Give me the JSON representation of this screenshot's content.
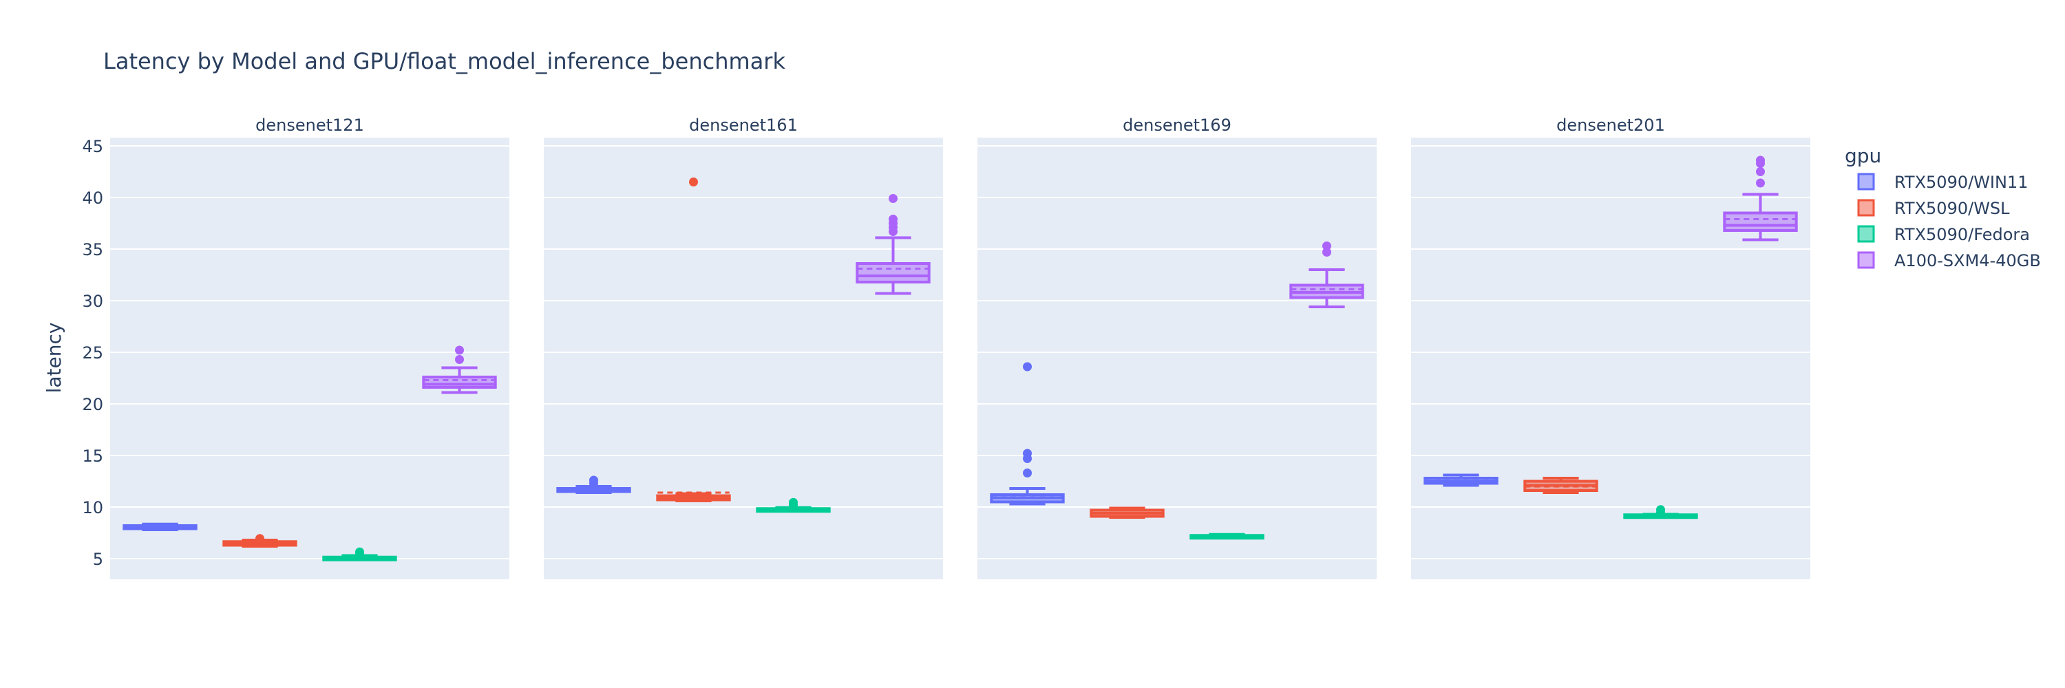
{
  "chart_data": {
    "type": "box",
    "title": "Latency by Model and GPU/float_model_inference_benchmark",
    "ylabel": "latency",
    "ylim": [
      3,
      45.8
    ],
    "yticks": [
      5,
      10,
      15,
      20,
      25,
      30,
      35,
      40,
      45
    ],
    "grid": true,
    "legend_title": "gpu",
    "legend_position": "right",
    "series": [
      {
        "name": "RTX5090/WIN11",
        "color": "#636efa"
      },
      {
        "name": "RTX5090/WSL",
        "color": "#ef553b"
      },
      {
        "name": "RTX5090/Fedora",
        "color": "#00cc96"
      },
      {
        "name": "A100-SXM4-40GB",
        "color": "#ab63fa"
      }
    ],
    "panels": [
      {
        "title": "densenet121",
        "boxes": [
          {
            "series": "RTX5090/WIN11",
            "min": 7.8,
            "q1": 7.9,
            "median": 8.05,
            "mean": 8.05,
            "q3": 8.2,
            "max": 8.35,
            "outliers": []
          },
          {
            "series": "RTX5090/WSL",
            "min": 6.2,
            "q1": 6.3,
            "median": 6.45,
            "mean": 6.45,
            "q3": 6.65,
            "max": 6.8,
            "outliers": [
              6.95
            ]
          },
          {
            "series": "RTX5090/Fedora",
            "min": 4.95,
            "q1": 5.0,
            "median": 5.05,
            "mean": 5.05,
            "q3": 5.15,
            "max": 5.3,
            "outliers": [
              5.5,
              5.65
            ]
          },
          {
            "series": "A100-SXM4-40GB",
            "min": 21.1,
            "q1": 21.6,
            "median": 21.9,
            "mean": 22.3,
            "q3": 22.6,
            "max": 23.5,
            "outliers": [
              24.3,
              25.2
            ]
          }
        ]
      },
      {
        "title": "densenet161",
        "boxes": [
          {
            "series": "RTX5090/WIN11",
            "min": 11.4,
            "q1": 11.5,
            "median": 11.6,
            "mean": 11.65,
            "q3": 11.8,
            "max": 12.0,
            "outliers": [
              12.3,
              12.6
            ]
          },
          {
            "series": "RTX5090/WSL",
            "min": 10.6,
            "q1": 10.7,
            "median": 10.9,
            "mean": 11.4,
            "q3": 11.1,
            "max": 11.3,
            "outliers": [
              41.5
            ]
          },
          {
            "series": "RTX5090/Fedora",
            "min": 9.6,
            "q1": 9.65,
            "median": 9.75,
            "mean": 9.8,
            "q3": 9.85,
            "max": 9.95,
            "outliers": [
              10.2,
              10.45
            ]
          },
          {
            "series": "A100-SXM4-40GB",
            "min": 30.7,
            "q1": 31.8,
            "median": 32.4,
            "mean": 33.1,
            "q3": 33.6,
            "max": 36.1,
            "outliers": [
              36.7,
              37.1,
              37.5,
              37.9,
              39.9
            ]
          }
        ]
      },
      {
        "title": "densenet169",
        "boxes": [
          {
            "series": "RTX5090/WIN11",
            "min": 10.3,
            "q1": 10.5,
            "median": 10.9,
            "mean": 11.15,
            "q3": 11.2,
            "max": 11.8,
            "outliers": [
              13.3,
              14.7,
              15.2,
              23.6
            ]
          },
          {
            "series": "RTX5090/WSL",
            "min": 9.0,
            "q1": 9.1,
            "median": 9.4,
            "mean": 9.4,
            "q3": 9.7,
            "max": 9.9,
            "outliers": []
          },
          {
            "series": "RTX5090/Fedora",
            "min": 7.0,
            "q1": 7.05,
            "median": 7.15,
            "mean": 7.15,
            "q3": 7.25,
            "max": 7.35,
            "outliers": []
          },
          {
            "series": "A100-SXM4-40GB",
            "min": 29.4,
            "q1": 30.3,
            "median": 30.8,
            "mean": 31.1,
            "q3": 31.5,
            "max": 33.0,
            "outliers": [
              34.7,
              35.3
            ]
          }
        ]
      },
      {
        "title": "densenet201",
        "boxes": [
          {
            "series": "RTX5090/WIN11",
            "min": 12.1,
            "q1": 12.3,
            "median": 12.5,
            "mean": 12.55,
            "q3": 12.8,
            "max": 13.1,
            "outliers": []
          },
          {
            "series": "RTX5090/WSL",
            "min": 11.4,
            "q1": 11.6,
            "median": 12.1,
            "mean": 12.0,
            "q3": 12.5,
            "max": 12.8,
            "outliers": []
          },
          {
            "series": "RTX5090/Fedora",
            "min": 9.0,
            "q1": 9.05,
            "median": 9.15,
            "mean": 9.15,
            "q3": 9.25,
            "max": 9.3,
            "outliers": [
              9.5,
              9.75
            ]
          },
          {
            "series": "A100-SXM4-40GB",
            "min": 35.9,
            "q1": 36.8,
            "median": 37.3,
            "mean": 37.9,
            "q3": 38.5,
            "max": 40.3,
            "outliers": [
              41.4,
              42.5,
              43.3,
              43.6
            ]
          }
        ]
      }
    ]
  }
}
